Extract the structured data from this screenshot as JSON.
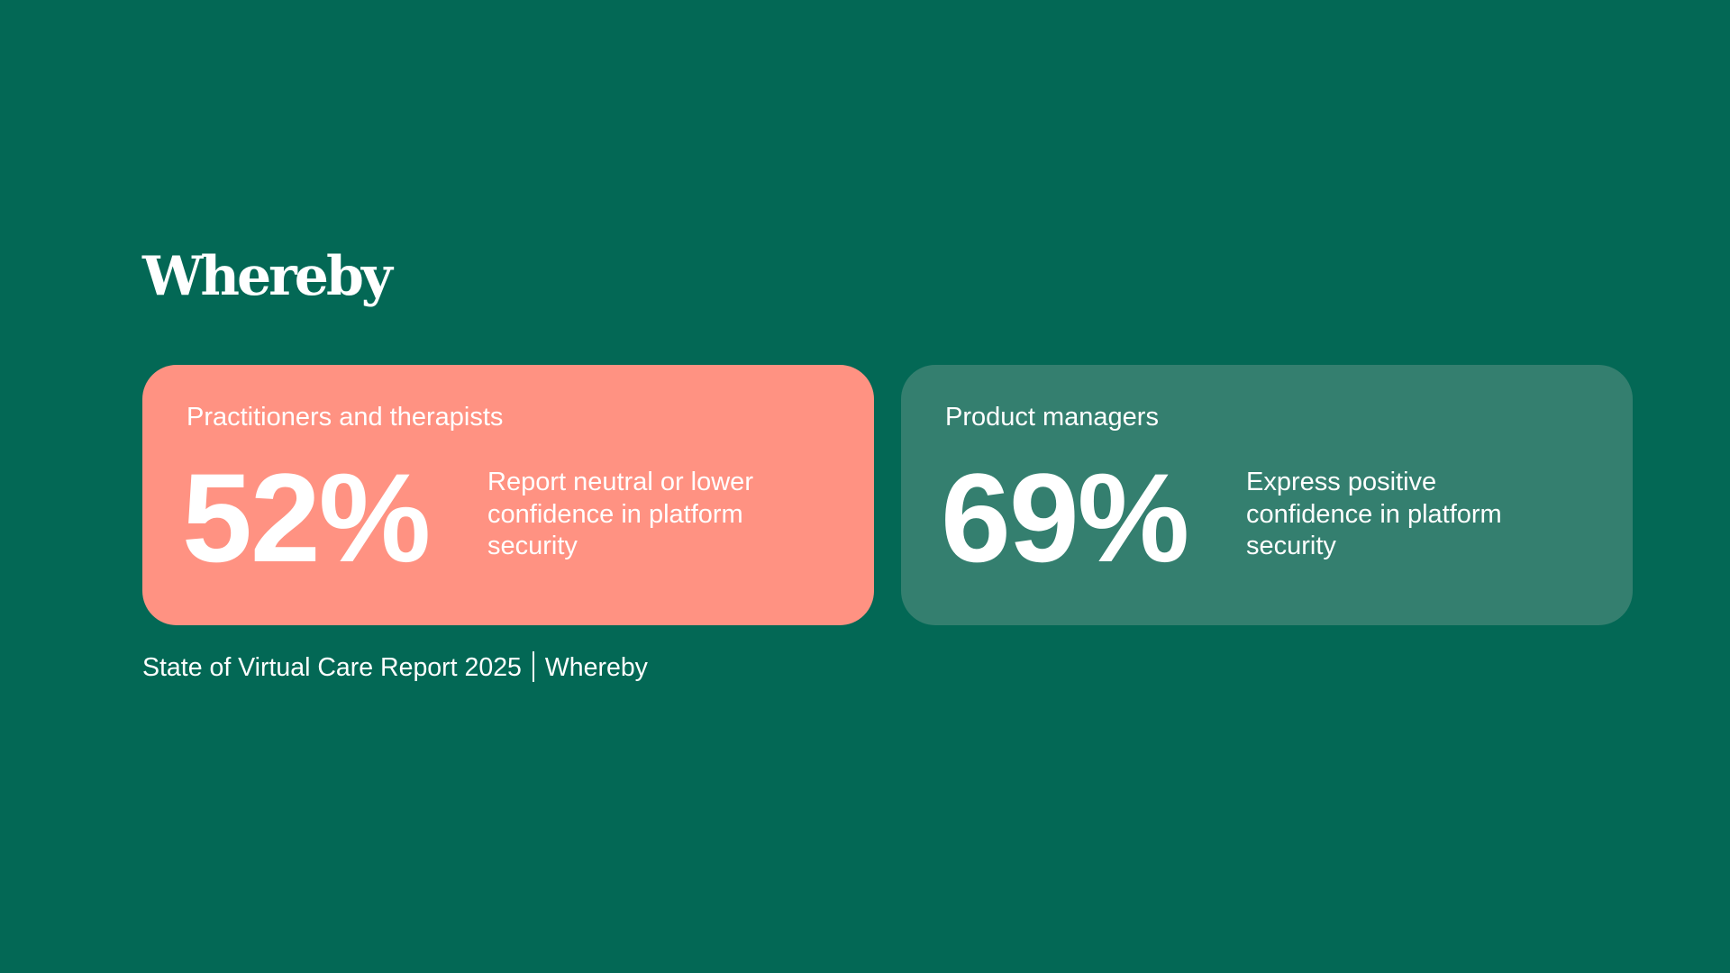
{
  "logo": "Whereby",
  "colors": {
    "background": "#036855",
    "card_practitioners": "#ff9282",
    "card_product": "#347f6f",
    "text": "#ffffff"
  },
  "cards": [
    {
      "category": "Practitioners and therapists",
      "value": "52%",
      "description": "Report neutral or lower confidence in platform security"
    },
    {
      "category": "Product managers",
      "value": "69%",
      "description": "Express positive confidence in platform security"
    }
  ],
  "footer": {
    "source": "State of Virtual Care Report 2025",
    "brand": "Whereby"
  }
}
